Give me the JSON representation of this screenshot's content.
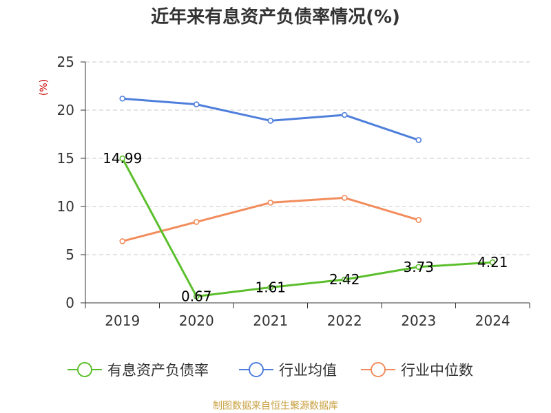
{
  "chart_data": {
    "type": "line",
    "title": "近年来有息资产负债率情况(%)",
    "y_unit": "(%)",
    "categories": [
      "2019",
      "2020",
      "2021",
      "2022",
      "2023",
      "2024"
    ],
    "ylim": [
      0,
      25
    ],
    "y_ticks": [
      "0",
      "5",
      "10",
      "15",
      "20",
      "25"
    ],
    "grid": "horizontal-dashed",
    "legend_position": "bottom",
    "series": [
      {
        "name": "有息资产负债率",
        "color": "#5bbf2c",
        "values": [
          14.99,
          0.67,
          1.61,
          2.42,
          3.73,
          4.21
        ],
        "labels": [
          "14.99",
          "0.67",
          "1.61",
          "2.42",
          "3.73",
          "4.21"
        ]
      },
      {
        "name": "行业均值",
        "color": "#4f7fdc",
        "values": [
          21.2,
          20.6,
          18.9,
          19.5,
          16.9,
          null
        ]
      },
      {
        "name": "行业中位数",
        "color": "#f28c5c",
        "values": [
          6.4,
          8.4,
          10.4,
          10.9,
          8.6,
          null
        ]
      }
    ]
  },
  "source": "制图数据来自恒生聚源数据库"
}
